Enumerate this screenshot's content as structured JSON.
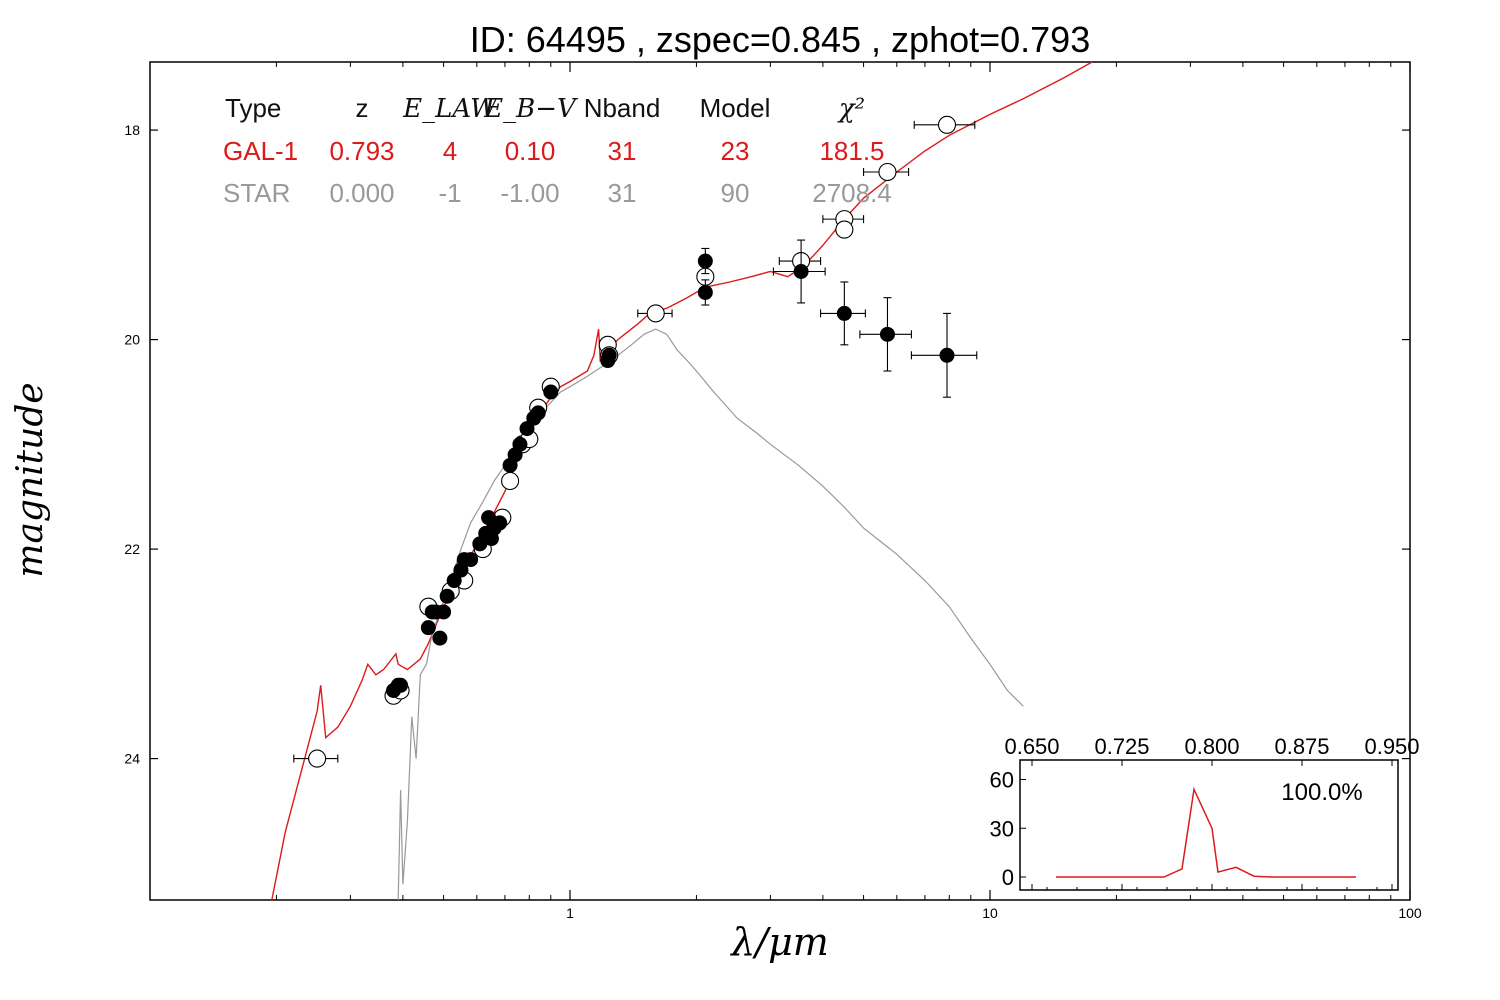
{
  "chart_data": [
    {
      "type": "scatter",
      "title": "ID:  64495 , zspec=0.845 , zphot=0.793",
      "xlabel": "λ/μm",
      "ylabel": "magnitude",
      "x_scale": "log",
      "xlim": [
        0.1,
        100
      ],
      "ylim": [
        25.35,
        17.35
      ],
      "y_inverted": true,
      "x_tick_labels": [
        "1",
        "10",
        "100"
      ],
      "x_ticks": [
        1,
        10,
        100
      ],
      "y_tick_labels": [
        "18",
        "20",
        "22",
        "24"
      ],
      "y_ticks": [
        18,
        20,
        22,
        24
      ],
      "grid": false,
      "colors": {
        "galaxy": "#dd1a1a",
        "star": "#999999",
        "points": "#000000"
      },
      "table": {
        "headers": [
          "Type",
          "z",
          "E_LAW",
          "E_B−V",
          "Nband",
          "Model",
          "χ²"
        ],
        "rows": [
          {
            "cells": [
              "GAL-1",
              "0.793",
              "4",
              "0.10",
              "31",
              "23",
              "181.5"
            ],
            "color": "#dd1a1a"
          },
          {
            "cells": [
              "STAR",
              "0.000",
              "-1",
              "-1.00",
              "31",
              "90",
              "2708.4"
            ],
            "color": "#999999"
          }
        ]
      },
      "series": [
        {
          "kind": "line",
          "color": "#dd1a1a",
          "points": [
            [
              0.195,
              25.35
            ],
            [
              0.21,
              24.7
            ],
            [
              0.23,
              24.1
            ],
            [
              0.25,
              23.55
            ],
            [
              0.255,
              23.3
            ],
            [
              0.262,
              23.8
            ],
            [
              0.28,
              23.7
            ],
            [
              0.3,
              23.5
            ],
            [
              0.32,
              23.25
            ],
            [
              0.33,
              23.1
            ],
            [
              0.345,
              23.2
            ],
            [
              0.36,
              23.15
            ],
            [
              0.385,
              23.0
            ],
            [
              0.39,
              23.1
            ],
            [
              0.41,
              23.15
            ],
            [
              0.44,
              23.05
            ],
            [
              0.46,
              22.9
            ],
            [
              0.5,
              22.55
            ],
            [
              0.55,
              22.25
            ],
            [
              0.6,
              21.95
            ],
            [
              0.65,
              21.7
            ],
            [
              0.7,
              21.45
            ],
            [
              0.75,
              21.15
            ],
            [
              0.8,
              20.9
            ],
            [
              0.85,
              20.7
            ],
            [
              0.9,
              20.55
            ],
            [
              0.95,
              20.45
            ],
            [
              1.0,
              20.4
            ],
            [
              1.1,
              20.3
            ],
            [
              1.14,
              20.15
            ],
            [
              1.17,
              19.9
            ],
            [
              1.18,
              20.2
            ],
            [
              1.3,
              20.0
            ],
            [
              1.45,
              19.85
            ],
            [
              1.55,
              19.75
            ],
            [
              1.7,
              19.7
            ],
            [
              1.9,
              19.6
            ],
            [
              2.1,
              19.5
            ],
            [
              2.4,
              19.45
            ],
            [
              2.7,
              19.4
            ],
            [
              3.0,
              19.35
            ],
            [
              3.3,
              19.4
            ],
            [
              3.6,
              19.3
            ],
            [
              4.0,
              19.1
            ],
            [
              4.5,
              18.85
            ],
            [
              5.0,
              18.65
            ],
            [
              6.0,
              18.4
            ],
            [
              7.0,
              18.2
            ],
            [
              8.0,
              18.05
            ],
            [
              10.0,
              17.85
            ],
            [
              12.0,
              17.7
            ],
            [
              15.0,
              17.5
            ],
            [
              17.5,
              17.35
            ]
          ]
        },
        {
          "kind": "line",
          "color": "#999999",
          "points": [
            [
              0.39,
              25.35
            ],
            [
              0.395,
              24.3
            ],
            [
              0.4,
              25.2
            ],
            [
              0.41,
              24.6
            ],
            [
              0.42,
              23.6
            ],
            [
              0.43,
              24.0
            ],
            [
              0.44,
              23.2
            ],
            [
              0.455,
              23.1
            ],
            [
              0.47,
              22.8
            ],
            [
              0.49,
              22.6
            ],
            [
              0.52,
              22.3
            ],
            [
              0.55,
              22.0
            ],
            [
              0.58,
              21.75
            ],
            [
              0.62,
              21.55
            ],
            [
              0.66,
              21.35
            ],
            [
              0.7,
              21.2
            ],
            [
              0.75,
              21.0
            ],
            [
              0.8,
              20.85
            ],
            [
              0.85,
              20.7
            ],
            [
              0.9,
              20.6
            ],
            [
              0.95,
              20.5
            ],
            [
              1.0,
              20.45
            ],
            [
              1.1,
              20.35
            ],
            [
              1.2,
              20.25
            ],
            [
              1.3,
              20.15
            ],
            [
              1.4,
              20.05
            ],
            [
              1.5,
              19.95
            ],
            [
              1.6,
              19.9
            ],
            [
              1.7,
              19.95
            ],
            [
              1.8,
              20.1
            ],
            [
              1.9,
              20.2
            ],
            [
              2.0,
              20.3
            ],
            [
              2.2,
              20.5
            ],
            [
              2.5,
              20.75
            ],
            [
              2.8,
              20.9
            ],
            [
              3.0,
              21.0
            ],
            [
              3.5,
              21.2
            ],
            [
              4.0,
              21.4
            ],
            [
              4.5,
              21.6
            ],
            [
              5.0,
              21.8
            ],
            [
              6.0,
              22.05
            ],
            [
              7.0,
              22.3
            ],
            [
              8.0,
              22.55
            ],
            [
              9.0,
              22.85
            ],
            [
              10.0,
              23.1
            ],
            [
              11.0,
              23.35
            ],
            [
              12.0,
              23.5
            ]
          ]
        }
      ],
      "filled_points": [
        {
          "x": 0.38,
          "y": 23.35
        },
        {
          "x": 0.39,
          "y": 23.3
        },
        {
          "x": 0.395,
          "y": 23.3
        },
        {
          "x": 0.46,
          "y": 22.75
        },
        {
          "x": 0.47,
          "y": 22.6
        },
        {
          "x": 0.48,
          "y": 22.6
        },
        {
          "x": 0.49,
          "y": 22.85
        },
        {
          "x": 0.5,
          "y": 22.6
        },
        {
          "x": 0.51,
          "y": 22.45
        },
        {
          "x": 0.53,
          "y": 22.3
        },
        {
          "x": 0.55,
          "y": 22.2
        },
        {
          "x": 0.56,
          "y": 22.1
        },
        {
          "x": 0.58,
          "y": 22.1
        },
        {
          "x": 0.61,
          "y": 21.95
        },
        {
          "x": 0.63,
          "y": 21.85
        },
        {
          "x": 0.64,
          "y": 21.7
        },
        {
          "x": 0.65,
          "y": 21.9
        },
        {
          "x": 0.66,
          "y": 21.8
        },
        {
          "x": 0.68,
          "y": 21.75
        },
        {
          "x": 0.72,
          "y": 21.2
        },
        {
          "x": 0.74,
          "y": 21.1
        },
        {
          "x": 0.76,
          "y": 21.0
        },
        {
          "x": 0.79,
          "y": 20.85
        },
        {
          "x": 0.82,
          "y": 20.75
        },
        {
          "x": 0.84,
          "y": 20.7
        },
        {
          "x": 0.9,
          "y": 20.5
        },
        {
          "x": 1.23,
          "y": 20.2
        },
        {
          "x": 1.24,
          "y": 20.15
        },
        {
          "x": 2.1,
          "y": 19.25,
          "yerr": 0.12
        },
        {
          "x": 2.1,
          "y": 19.55,
          "yerr": 0.12
        },
        {
          "x": 3.55,
          "y": 19.35,
          "xerr": 0.5,
          "yerr": 0.3
        },
        {
          "x": 4.5,
          "y": 19.75,
          "xerr": 0.55,
          "yerr": 0.3
        },
        {
          "x": 5.7,
          "y": 19.95,
          "xerr": 0.8,
          "yerr": 0.35
        },
        {
          "x": 7.9,
          "y": 20.15,
          "xerr": 1.4,
          "yerr": 0.4
        }
      ],
      "open_points": [
        {
          "x": 0.25,
          "y": 24.0,
          "xerr": 0.03
        },
        {
          "x": 0.38,
          "y": 23.4
        },
        {
          "x": 0.395,
          "y": 23.35
        },
        {
          "x": 0.46,
          "y": 22.55
        },
        {
          "x": 0.52,
          "y": 22.4
        },
        {
          "x": 0.56,
          "y": 22.3
        },
        {
          "x": 0.62,
          "y": 22.0
        },
        {
          "x": 0.69,
          "y": 21.7
        },
        {
          "x": 0.72,
          "y": 21.35
        },
        {
          "x": 0.77,
          "y": 21.0
        },
        {
          "x": 0.8,
          "y": 20.95
        },
        {
          "x": 0.84,
          "y": 20.65
        },
        {
          "x": 0.9,
          "y": 20.45
        },
        {
          "x": 1.23,
          "y": 20.05
        },
        {
          "x": 1.24,
          "y": 20.15
        },
        {
          "x": 1.6,
          "y": 19.75,
          "xerr": 0.15
        },
        {
          "x": 2.1,
          "y": 19.4
        },
        {
          "x": 3.55,
          "y": 19.25,
          "xerr": 0.4
        },
        {
          "x": 4.5,
          "y": 18.85,
          "xerr": 0.5
        },
        {
          "x": 4.5,
          "y": 18.95
        },
        {
          "x": 5.7,
          "y": 18.4,
          "xerr": 0.7
        },
        {
          "x": 7.9,
          "y": 17.95,
          "xerr": 1.3
        }
      ]
    },
    {
      "type": "line",
      "title": "",
      "annotation": "100.0%",
      "xlim": [
        0.64,
        0.955
      ],
      "ylim": [
        -8,
        72
      ],
      "x_tick_labels": [
        "0.650",
        "0.725",
        "0.800",
        "0.875",
        "0.950"
      ],
      "x_ticks": [
        0.65,
        0.725,
        0.8,
        0.875,
        0.95
      ],
      "y_tick_labels": [
        "0",
        "30",
        "60"
      ],
      "y_ticks": [
        0,
        30,
        60
      ],
      "color": "#dd1a1a",
      "x": [
        0.67,
        0.76,
        0.775,
        0.785,
        0.8,
        0.805,
        0.82,
        0.835,
        0.85,
        0.92
      ],
      "values": [
        0,
        0,
        5,
        54,
        30,
        3,
        6,
        0.5,
        0,
        0
      ]
    }
  ]
}
